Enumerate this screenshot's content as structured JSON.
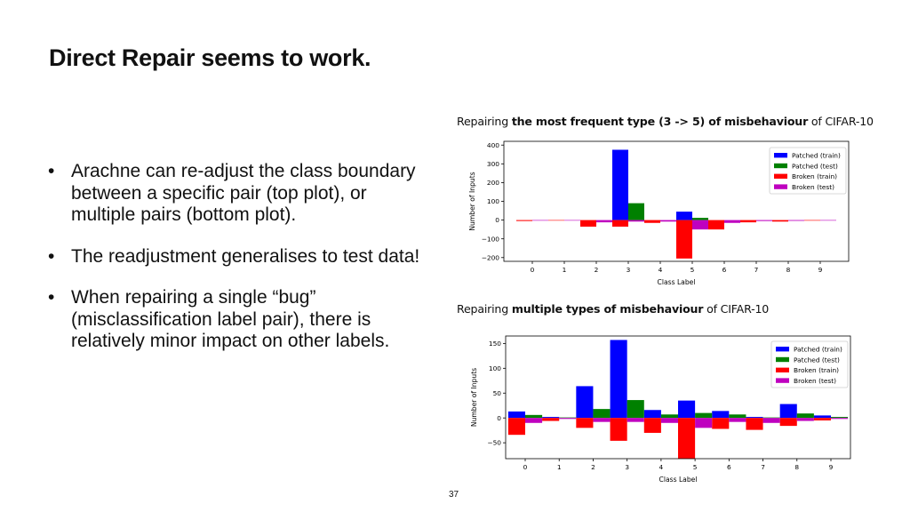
{
  "slide": {
    "title": "Direct Repair seems to work.",
    "bullet_glyph": "•",
    "bullets": [
      "Arachne can re-adjust the class boundary between a specific pair (top plot), or multiple pairs (bottom plot).",
      "The readjustment generalises to test data!",
      "When repairing a single “bug” (misclassification label pair), there is relatively minor impact on other labels."
    ],
    "page_number": "37"
  },
  "captions": [
    {
      "pre": "Repairing ",
      "bold": "the most frequent type (3 -> 5) of misbehaviour",
      "post": " of CIFAR-10"
    },
    {
      "pre": "Repairing ",
      "bold": "multiple types of misbehaviour",
      "post": " of CIFAR-10"
    }
  ],
  "chart_data": [
    {
      "type": "bar",
      "title": "",
      "xlabel": "Class Label",
      "ylabel": "Number of Inputs",
      "categories": [
        "0",
        "1",
        "2",
        "3",
        "4",
        "5",
        "6",
        "7",
        "8",
        "9"
      ],
      "ylim": [
        -220,
        420
      ],
      "yticks": [
        -200,
        -100,
        0,
        100,
        200,
        300,
        400
      ],
      "ytick_labels": [
        "−200",
        "−100",
        "0",
        "100",
        "200",
        "300",
        "400"
      ],
      "grid": false,
      "legend": "top-right",
      "series": [
        {
          "name": "Patched (train)",
          "color": "#0000ff",
          "values": [
            0,
            0,
            0,
            375,
            0,
            45,
            0,
            0,
            0,
            0
          ]
        },
        {
          "name": "Patched (test)",
          "color": "#008000",
          "values": [
            0,
            0,
            0,
            90,
            0,
            12,
            0,
            0,
            0,
            0
          ]
        },
        {
          "name": "Broken (train)",
          "color": "#ff0000",
          "values": [
            -5,
            -2,
            -35,
            -35,
            -15,
            -205,
            -50,
            -12,
            -8,
            -3
          ]
        },
        {
          "name": "Broken (test)",
          "color": "#bf00bf",
          "values": [
            -3,
            -1,
            -12,
            -8,
            -8,
            -50,
            -15,
            -5,
            -4,
            -2
          ]
        }
      ]
    },
    {
      "type": "bar",
      "title": "",
      "xlabel": "Class Label",
      "ylabel": "Number of Inputs",
      "categories": [
        "0",
        "1",
        "2",
        "3",
        "4",
        "5",
        "6",
        "7",
        "8",
        "9"
      ],
      "ylim": [
        -82,
        165
      ],
      "yticks": [
        -50,
        0,
        50,
        100,
        150
      ],
      "ytick_labels": [
        "−50",
        "0",
        "50",
        "100",
        "150"
      ],
      "grid": false,
      "legend": "top-right",
      "series": [
        {
          "name": "Patched (train)",
          "color": "#0000ff",
          "values": [
            13,
            2,
            64,
            157,
            16,
            35,
            14,
            2,
            28,
            5
          ]
        },
        {
          "name": "Patched (test)",
          "color": "#008000",
          "values": [
            6,
            1,
            18,
            36,
            7,
            10,
            7,
            1,
            9,
            2
          ]
        },
        {
          "name": "Broken (train)",
          "color": "#ff0000",
          "values": [
            -34,
            -6,
            -20,
            -46,
            -30,
            -82,
            -22,
            -24,
            -16,
            -5
          ]
        },
        {
          "name": "Broken (test)",
          "color": "#bf00bf",
          "values": [
            -10,
            -2,
            -8,
            -8,
            -10,
            -20,
            -8,
            -10,
            -6,
            -2
          ]
        }
      ]
    }
  ]
}
